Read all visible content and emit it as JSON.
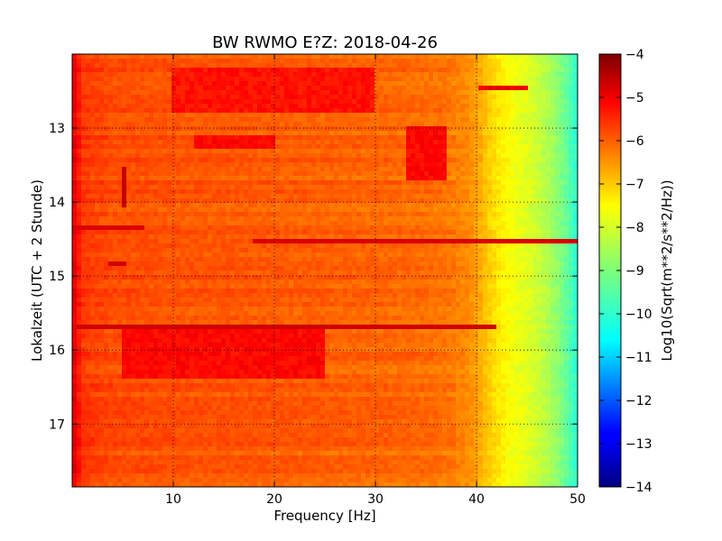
{
  "chart_data": {
    "type": "heatmap",
    "title": "BW RWMO E?Z: 2018-04-26",
    "xlabel": "Frequency [Hz]",
    "ylabel": "Lokalzeit (UTC + 2 Stunde)",
    "xlim": [
      0,
      50
    ],
    "ylim": [
      17.85,
      12.0
    ],
    "y_inverted": true,
    "x_ticks": [
      10,
      20,
      30,
      40,
      50
    ],
    "x_tick_labels": [
      "10",
      "20",
      "30",
      "40",
      "50"
    ],
    "y_ticks": [
      13,
      14,
      15,
      16,
      17
    ],
    "y_tick_labels": [
      "13",
      "14",
      "15",
      "16",
      "17"
    ],
    "grid": true,
    "colormap": "jet",
    "colorbar": {
      "label": "Log10(Sqrt(m**2/s**2/Hz))",
      "range": [
        -14,
        -4
      ],
      "ticks": [
        -4,
        -5,
        -6,
        -7,
        -8,
        -9,
        -10,
        -11,
        -12,
        -13,
        -14
      ],
      "tick_labels": [
        "−4",
        "−5",
        "−6",
        "−7",
        "−8",
        "−9",
        "−10",
        "−11",
        "−12",
        "−13",
        "−14"
      ]
    },
    "background_profile": {
      "frequency_hz": [
        0,
        1,
        4,
        8,
        12,
        16,
        20,
        25,
        30,
        34,
        37,
        39,
        40,
        41,
        42,
        43,
        44,
        45,
        46,
        47,
        48,
        49,
        50
      ],
      "value": [
        -4.9,
        -5.8,
        -6.0,
        -6.05,
        -6.1,
        -6.1,
        -6.15,
        -6.2,
        -6.25,
        -6.3,
        -6.4,
        -6.6,
        -6.8,
        -7.2,
        -7.5,
        -7.75,
        -7.9,
        -8.05,
        -8.25,
        -8.5,
        -8.85,
        -9.3,
        -9.9
      ]
    },
    "features": [
      {
        "kind": "band",
        "time": 14.55,
        "freq_range": [
          18,
          50
        ],
        "value": -4.9
      },
      {
        "kind": "band",
        "time": 15.68,
        "freq_range": [
          0.5,
          42
        ],
        "value": -4.8
      },
      {
        "kind": "band",
        "time": 14.34,
        "freq_range": [
          0.5,
          7
        ],
        "value": -4.9
      },
      {
        "kind": "band",
        "time": 14.85,
        "freq_range": [
          3.5,
          5.5
        ],
        "value": -4.8
      },
      {
        "kind": "patch",
        "time_range": [
          12.4,
          12.5
        ],
        "freq_range": [
          40,
          45
        ],
        "value": -5.0
      },
      {
        "kind": "patch",
        "time_range": [
          12.2,
          12.8
        ],
        "freq_range": [
          10,
          30
        ],
        "value": -5.4
      },
      {
        "kind": "patch",
        "time_range": [
          13.0,
          13.7
        ],
        "freq_range": [
          33,
          37
        ],
        "value": -5.3
      },
      {
        "kind": "patch",
        "time_range": [
          13.1,
          13.3
        ],
        "freq_range": [
          12,
          20
        ],
        "value": -5.3
      },
      {
        "kind": "patch",
        "time_range": [
          15.7,
          16.4
        ],
        "freq_range": [
          5,
          25
        ],
        "value": -5.3
      },
      {
        "kind": "line",
        "time_range": [
          13.55,
          14.1
        ],
        "freq": 5.0,
        "value": -4.7
      }
    ]
  }
}
